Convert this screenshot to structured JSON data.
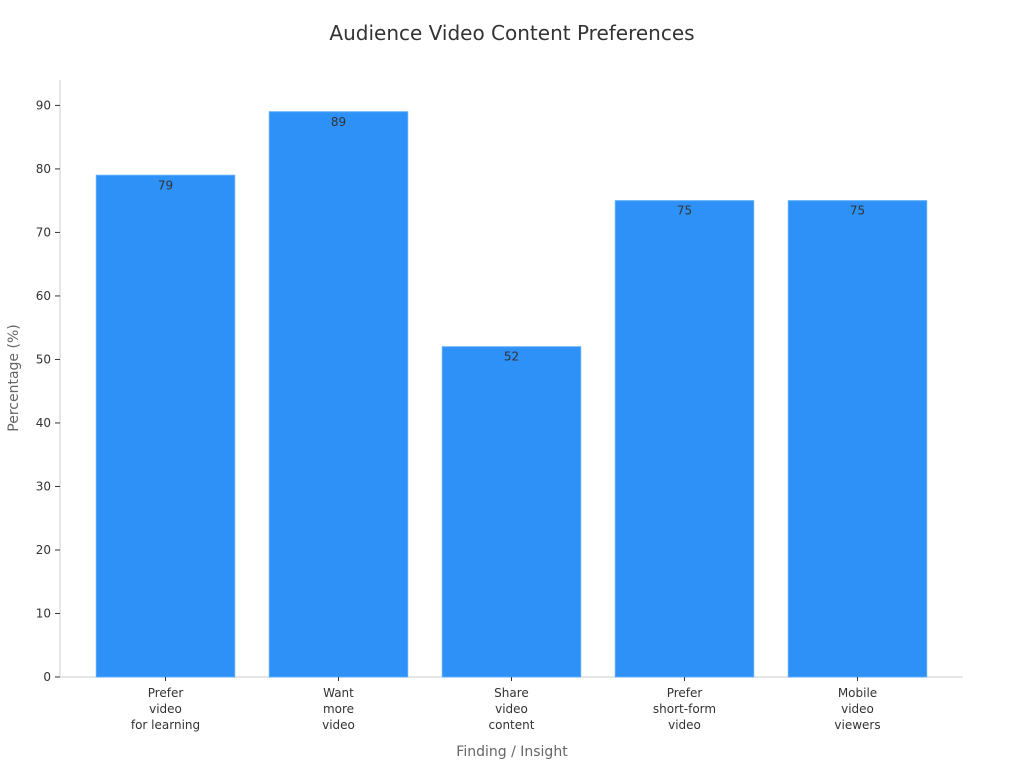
{
  "chart_data": {
    "type": "bar",
    "title": "Audience Video Content Preferences",
    "xlabel": "Finding / Insight",
    "ylabel": "Percentage (%)",
    "categories": [
      [
        "Prefer",
        "video",
        "for learning"
      ],
      [
        "Want",
        "more",
        "video"
      ],
      [
        "Share",
        "video",
        "content"
      ],
      [
        "Prefer",
        "short-form",
        "video"
      ],
      [
        "Mobile",
        "video",
        "viewers"
      ]
    ],
    "values": [
      79,
      89,
      52,
      75,
      75
    ],
    "ylim": [
      0,
      94
    ],
    "yticks": [
      0,
      10,
      20,
      30,
      40,
      50,
      60,
      70,
      80,
      90
    ],
    "grid": false,
    "legend": "none",
    "colors": {
      "bar": "#2e91f7",
      "bar_edge": "#5aaaf9"
    }
  }
}
